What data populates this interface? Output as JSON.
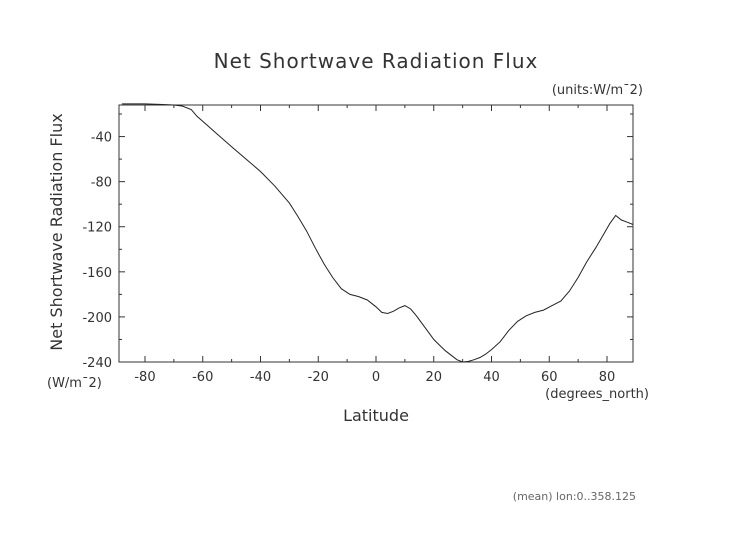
{
  "chart_data": {
    "type": "line",
    "title": "Net Shortwave Radiation Flux",
    "units_label": "(units:W/m¯2)",
    "xlabel": "Latitude",
    "x_units": "(degrees_north)",
    "ylabel": "Net Shortwave Radiation Flux",
    "y_units": "(W/m¯2)",
    "footer": "(mean) lon:0..358.125",
    "xlim": [
      -89,
      89
    ],
    "ylim": [
      -240,
      -12
    ],
    "x_ticks": [
      -80,
      -60,
      -40,
      -20,
      0,
      20,
      40,
      60,
      80
    ],
    "y_ticks": [
      -40,
      -80,
      -120,
      -160,
      -200,
      -240
    ],
    "grid": false,
    "series": [
      {
        "x": [
          -88,
          -80,
          -75,
          -70,
          -67,
          -64,
          -62,
          -58,
          -54,
          -50,
          -45,
          -40,
          -35,
          -30,
          -27,
          -24,
          -21,
          -18,
          -15,
          -12,
          -9,
          -6,
          -3,
          0,
          2,
          4,
          6,
          8,
          10,
          12,
          14,
          16,
          18,
          20,
          22,
          24,
          26,
          28,
          30,
          32,
          34,
          36,
          38,
          40,
          43,
          46,
          49,
          52,
          55,
          58,
          61,
          64,
          67,
          70,
          73,
          76,
          79,
          81,
          83,
          85,
          87,
          89
        ],
        "y": [
          -11,
          -11,
          -11.5,
          -12,
          -13,
          -16,
          -22,
          -31,
          -40,
          -49,
          -60,
          -71,
          -84,
          -99,
          -111,
          -124,
          -139,
          -153,
          -165,
          -175,
          -180,
          -182,
          -185,
          -191,
          -196,
          -197,
          -195,
          -192,
          -190,
          -193,
          -199,
          -206,
          -213,
          -220,
          -225,
          -230,
          -234,
          -238,
          -240,
          -239.5,
          -238,
          -236,
          -233,
          -229,
          -222,
          -212,
          -204,
          -199,
          -196,
          -194,
          -190,
          -186,
          -177,
          -165,
          -151,
          -139,
          -126,
          -117,
          -110,
          -114,
          -116,
          -118
        ]
      }
    ]
  }
}
